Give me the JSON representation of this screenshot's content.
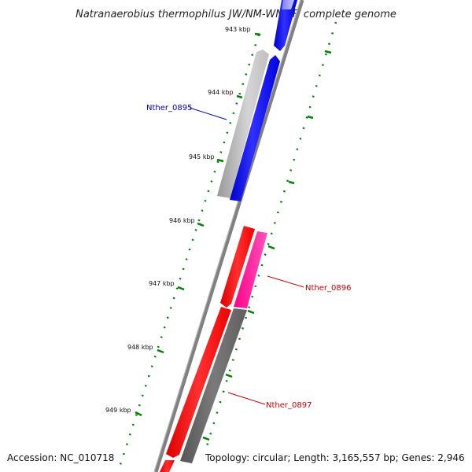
{
  "title": "Natranaerobius thermophilus JW/NM-WN-LF, complete genome",
  "accession": "Accession: NC_010718",
  "summary": "Topology: circular; Length: 3,165,557 bp; Genes: 2,946",
  "kbp_labels": [
    "943 kbp",
    "944 kbp",
    "945 kbp",
    "946 kbp",
    "947 kbp",
    "948 kbp",
    "949 kbp"
  ],
  "gene_labels": [
    {
      "id": "Nther_0895",
      "color": "#0000cc"
    },
    {
      "id": "Nther_0896",
      "color": "#cc0000"
    },
    {
      "id": "Nther_0897",
      "color": "#cc0000"
    }
  ],
  "colors": {
    "backbone": "#808080",
    "tick": "#008000",
    "cds_blue": "#0000ee",
    "cds_red": "#ff0000",
    "cds_pink": "#ff2299",
    "cds_gray": "#666666",
    "cds_lightgray": "#b0b0b0"
  }
}
